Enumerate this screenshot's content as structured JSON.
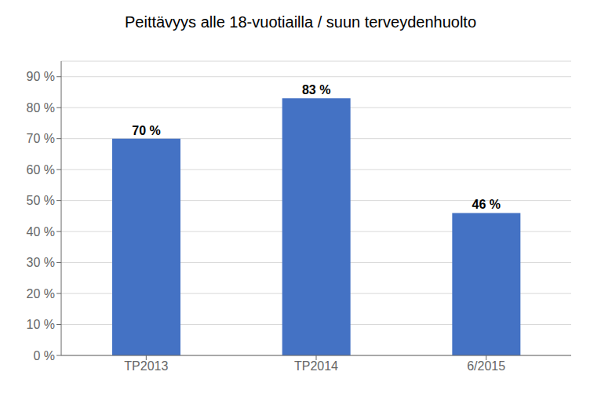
{
  "chart_data": {
    "type": "bar",
    "title": "Peittävyys alle 18-vuotiailla / suun terveydenhuolto",
    "categories": [
      "TP2013",
      "TP2014",
      "6/2015"
    ],
    "values": [
      70,
      83,
      46
    ],
    "value_labels": [
      "70 %",
      "83 %",
      "46 %"
    ],
    "data_labels": true,
    "color": "#4472C4",
    "ylim": [
      0,
      95
    ],
    "yticks": [
      {
        "value": 0,
        "label": "0 %"
      },
      {
        "value": 10,
        "label": "10 %"
      },
      {
        "value": 20,
        "label": "20 %"
      },
      {
        "value": 30,
        "label": "30 %"
      },
      {
        "value": 40,
        "label": "40 %"
      },
      {
        "value": 50,
        "label": "50 %"
      },
      {
        "value": 60,
        "label": "60 %"
      },
      {
        "value": 70,
        "label": "70 %"
      },
      {
        "value": 80,
        "label": "80 %"
      },
      {
        "value": 90,
        "label": "90 %"
      }
    ],
    "grid": true
  }
}
